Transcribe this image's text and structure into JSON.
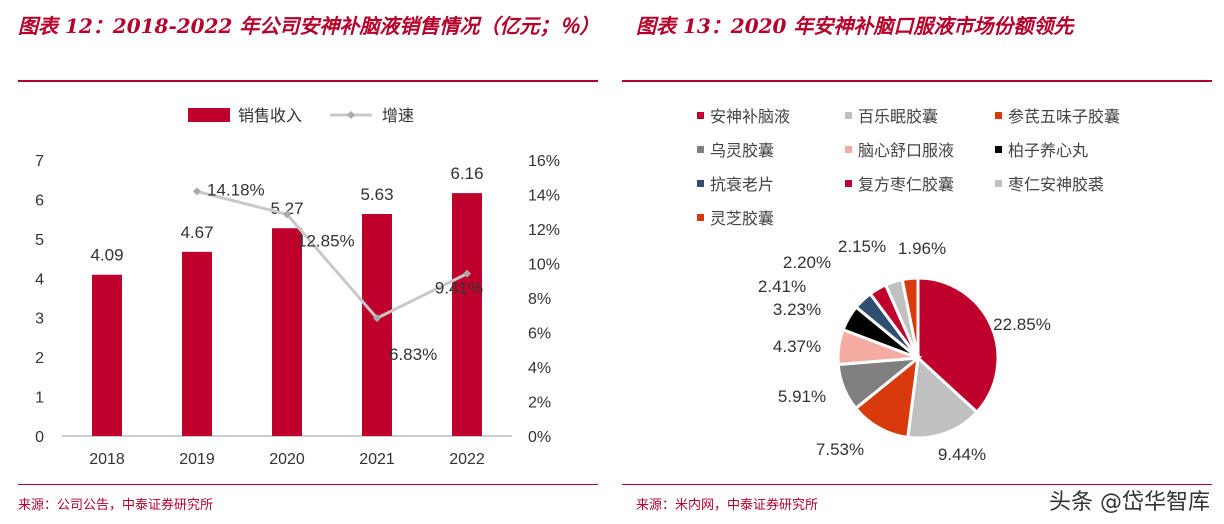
{
  "left": {
    "title": "图表 12：2018-2022 年公司安神补脑液销售情况（亿元；％）",
    "source": "来源：公司公告，中泰证券研究所"
  },
  "right": {
    "title": "图表 13：2020 年安神补脑口服液市场份额领先",
    "source": "来源：米内网，中泰证券研究所"
  },
  "watermark": "头条 @岱华智库",
  "chart_data": [
    {
      "type": "bar+line",
      "categories": [
        "2018",
        "2019",
        "2020",
        "2021",
        "2022"
      ],
      "series": [
        {
          "name": "销售收入",
          "type": "bar",
          "axis": "left",
          "values": [
            4.09,
            4.67,
            5.27,
            5.63,
            6.16
          ],
          "color": "#c0002c",
          "labels": [
            "4.09",
            "4.67",
            "5.27",
            "5.63",
            "6.16"
          ]
        },
        {
          "name": "增速",
          "type": "line",
          "axis": "right",
          "values": [
            null,
            14.18,
            12.85,
            6.83,
            9.41
          ],
          "color": "#c8c8c8",
          "labels": [
            "",
            "14.18%",
            "12.85%",
            "6.83%",
            "9.41%"
          ]
        }
      ],
      "ylim": [
        0,
        7
      ],
      "yticks": [
        "0",
        "1",
        "2",
        "3",
        "4",
        "5",
        "6",
        "7"
      ],
      "y2lim": [
        0,
        16
      ],
      "y2ticks": [
        "0%",
        "2%",
        "4%",
        "6%",
        "8%",
        "10%",
        "12%",
        "14%",
        "16%"
      ],
      "legend": "top"
    },
    {
      "type": "pie",
      "start": "top",
      "direction": "clockwise",
      "slices": [
        {
          "name": "安神补脑液",
          "value": 22.85,
          "label": "22.85%",
          "color": "#c0002c"
        },
        {
          "name": "百乐眠胶囊",
          "value": 9.44,
          "label": "9.44%",
          "color": "#c0c0c0"
        },
        {
          "name": "参芪五味子胶囊",
          "value": 7.53,
          "label": "7.53%",
          "color": "#d83a0c"
        },
        {
          "name": "乌灵胶囊",
          "value": 5.91,
          "label": "5.91%",
          "color": "#7f7f7f"
        },
        {
          "name": "脑心舒口服液",
          "value": 4.37,
          "label": "4.37%",
          "color": "#f4aca2"
        },
        {
          "name": "柏子养心丸",
          "value": 3.23,
          "label": "3.23%",
          "color": "#000000"
        },
        {
          "name": "抗衰老片",
          "value": 2.41,
          "label": "2.41%",
          "color": "#2f4e72"
        },
        {
          "name": "复方枣仁胶囊",
          "value": 2.2,
          "label": "2.20%",
          "color": "#c0002c"
        },
        {
          "name": "枣仁安神胶裘",
          "value": 2.15,
          "label": "2.15%",
          "color": "#c0c0c0"
        },
        {
          "name": "灵芝胶囊",
          "value": 1.96,
          "label": "1.96%",
          "color": "#d83a0c"
        }
      ],
      "legend": "top"
    }
  ]
}
